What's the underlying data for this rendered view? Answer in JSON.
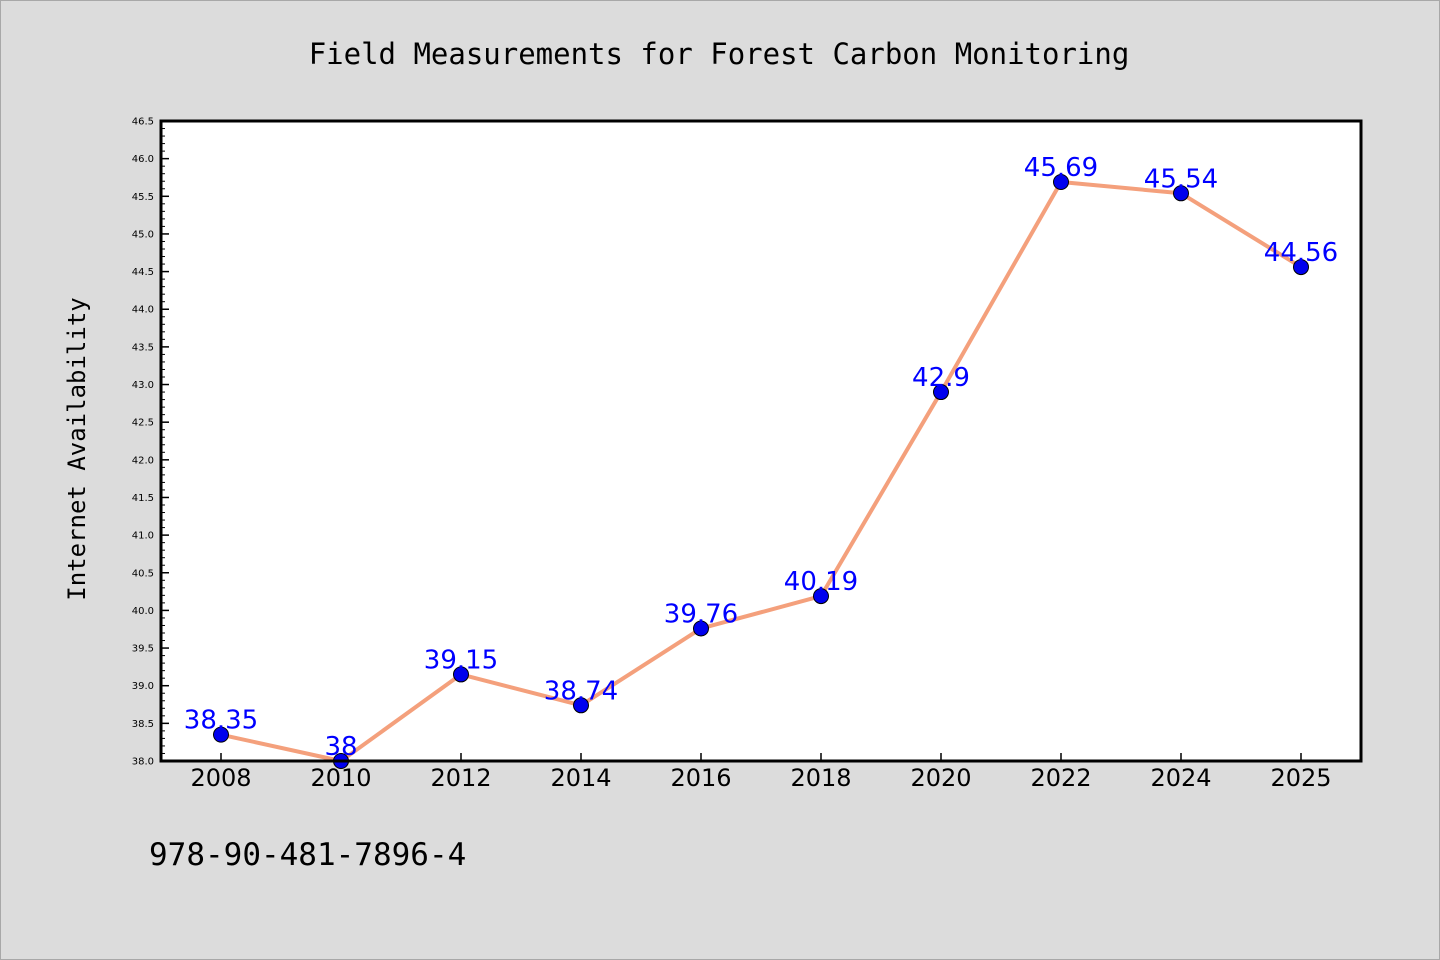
{
  "chart_data": {
    "type": "line",
    "title": "Field Measurements for Forest Carbon Monitoring",
    "xlabel": "",
    "ylabel": "Internet Availability",
    "categories": [
      "2008",
      "2010",
      "2012",
      "2014",
      "2016",
      "2018",
      "2020",
      "2022",
      "2024",
      "2025"
    ],
    "series": [
      {
        "values": [
          38.35,
          38,
          39.15,
          38.74,
          39.76,
          40.19,
          42.9,
          45.69,
          45.54,
          44.56
        ],
        "data_labels": [
          "38.35",
          "38",
          "39.15",
          "38.74",
          "39.76",
          "40.19",
          "42.9",
          "45.69",
          "45.54",
          "44.56"
        ],
        "line_color": "#f4a07c",
        "marker_color": "#0000ee"
      }
    ],
    "ylim": [
      38.0,
      46.5
    ],
    "yticks": [
      "38.0",
      "38.5",
      "39.0",
      "39.5",
      "40.0",
      "40.5",
      "41.0",
      "41.5",
      "42.0",
      "42.5",
      "43.0",
      "43.5",
      "44.0",
      "44.5",
      "45.0",
      "45.5",
      "46.0",
      "46.5"
    ],
    "grid": false,
    "legend": "none",
    "data_label_color": "#0000ff",
    "background": "#dcdcdc",
    "plot_background": "#ffffff"
  },
  "annotation": "978-90-481-7896-4"
}
